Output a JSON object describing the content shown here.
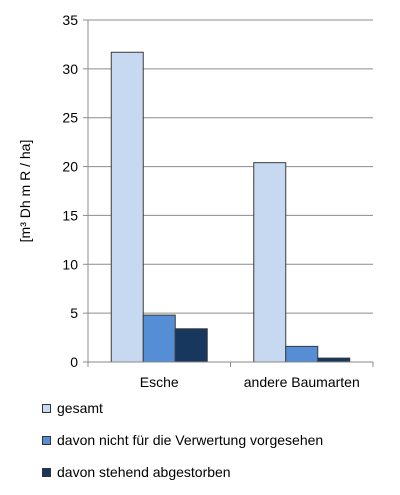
{
  "chart_data": {
    "type": "bar",
    "categories": [
      "Esche",
      "andere Baumarten"
    ],
    "series": [
      {
        "name": "gesamt",
        "values": [
          31.7,
          20.4
        ],
        "color": "#c6d9f1"
      },
      {
        "name": "davon nicht für die Verwertung vorgesehen",
        "values": [
          4.8,
          1.6
        ],
        "color": "#558ed5"
      },
      {
        "name": "davon stehend abgestorben",
        "values": [
          3.4,
          0.4
        ],
        "color": "#17375e"
      }
    ],
    "ylabel": "[m³ Dh m R / ha]",
    "ylim": [
      0,
      35
    ],
    "yticks": [
      0,
      5,
      10,
      15,
      20,
      25,
      30,
      35
    ],
    "grid": true,
    "legend_position": "bottom"
  }
}
